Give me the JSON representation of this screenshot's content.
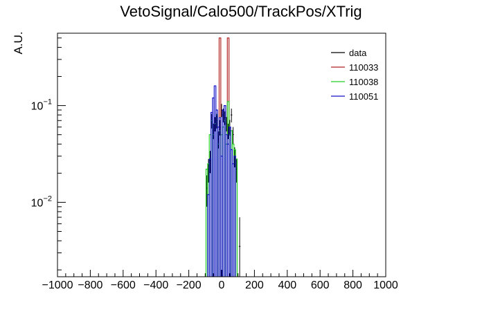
{
  "chart_data": {
    "type": "histogram-step",
    "title": "VetoSignal/Calo500/TrackPos/XTrig",
    "xlabel": "",
    "ylabel": "A.U.",
    "xlim": [
      -1000,
      1000
    ],
    "ylim": [
      0.0017,
      0.56
    ],
    "yscale": "log",
    "grid": false,
    "legend_position": "top-right",
    "x_tick_labels": [
      "−1000",
      "−800",
      "−600",
      "−400",
      "−200",
      "0",
      "200",
      "400",
      "600",
      "800",
      "1000"
    ],
    "x_ticks": [
      -1000,
      -800,
      -600,
      -400,
      -200,
      0,
      200,
      400,
      600,
      800,
      1000
    ],
    "y_tick_labels": [
      {
        "base": "10",
        "exp": "−1",
        "value": 0.1
      },
      {
        "base": "10",
        "exp": "−2",
        "value": 0.01
      }
    ],
    "bin_width": 10,
    "series": [
      {
        "name": "data",
        "color": "#000000",
        "style": "errorbars",
        "points": [
          {
            "x": -90,
            "y": 0.014,
            "err": 0.005
          },
          {
            "x": -80,
            "y": 0.022,
            "err": 0.006
          },
          {
            "x": -70,
            "y": 0.027,
            "err": 0.007
          },
          {
            "x": -60,
            "y": 0.07,
            "err": 0.012
          },
          {
            "x": -50,
            "y": 0.055,
            "err": 0.01
          },
          {
            "x": -40,
            "y": 0.065,
            "err": 0.011
          },
          {
            "x": -30,
            "y": 0.07,
            "err": 0.012
          },
          {
            "x": -20,
            "y": 0.045,
            "err": 0.009
          },
          {
            "x": -10,
            "y": 0.06,
            "err": 0.011
          },
          {
            "x": 0,
            "y": 0.09,
            "err": 0.014
          },
          {
            "x": 10,
            "y": 0.08,
            "err": 0.013
          },
          {
            "x": 20,
            "y": 0.075,
            "err": 0.012
          },
          {
            "x": 30,
            "y": 0.065,
            "err": 0.011
          },
          {
            "x": 40,
            "y": 0.055,
            "err": 0.01
          },
          {
            "x": 50,
            "y": 0.06,
            "err": 0.011
          },
          {
            "x": 60,
            "y": 0.08,
            "err": 0.013
          },
          {
            "x": 70,
            "y": 0.05,
            "err": 0.01
          },
          {
            "x": 80,
            "y": 0.03,
            "err": 0.007
          },
          {
            "x": 90,
            "y": 0.022,
            "err": 0.006
          },
          {
            "x": 110,
            "y": 0.0035,
            "err": 0.0035
          }
        ]
      },
      {
        "name": "110033",
        "color": "#b22222",
        "style": "step",
        "bins": [
          {
            "x": -10,
            "y": 0.5
          },
          {
            "x": 40,
            "y": 0.5
          }
        ]
      },
      {
        "name": "110038",
        "color": "#22cc22",
        "style": "step",
        "bins": [
          {
            "x": -90,
            "y": 0.022
          },
          {
            "x": -80,
            "y": 0.025
          },
          {
            "x": -70,
            "y": 0.05
          },
          {
            "x": -60,
            "y": 0.07
          },
          {
            "x": -50,
            "y": 0.05
          },
          {
            "x": -40,
            "y": 0.065
          },
          {
            "x": -30,
            "y": 0.08
          },
          {
            "x": -20,
            "y": 0.04
          },
          {
            "x": -10,
            "y": 0.055
          },
          {
            "x": 0,
            "y": 0.05
          },
          {
            "x": 10,
            "y": 0.06
          },
          {
            "x": 20,
            "y": 0.07
          },
          {
            "x": 30,
            "y": 0.04
          },
          {
            "x": 40,
            "y": 0.11
          },
          {
            "x": 50,
            "y": 0.05
          },
          {
            "x": 60,
            "y": 0.055
          },
          {
            "x": 70,
            "y": 0.04
          },
          {
            "x": 80,
            "y": 0.035
          },
          {
            "x": 90,
            "y": 0.028
          }
        ]
      },
      {
        "name": "110051",
        "color": "#1010c8",
        "style": "step",
        "bins": [
          {
            "x": -80,
            "y": 0.012
          },
          {
            "x": -70,
            "y": 0.028
          },
          {
            "x": -60,
            "y": 0.085
          },
          {
            "x": -50,
            "y": 0.12
          },
          {
            "x": -40,
            "y": 0.16
          },
          {
            "x": -30,
            "y": 0.09
          },
          {
            "x": -20,
            "y": 0.06
          },
          {
            "x": -10,
            "y": 0.075
          },
          {
            "x": 0,
            "y": 0.03
          },
          {
            "x": 10,
            "y": 0.09
          },
          {
            "x": 20,
            "y": 0.1
          },
          {
            "x": 30,
            "y": 0.05
          },
          {
            "x": 40,
            "y": 0.04
          },
          {
            "x": 50,
            "y": 0.06
          },
          {
            "x": 60,
            "y": 0.035
          },
          {
            "x": 70,
            "y": 0.025
          },
          {
            "x": 80,
            "y": 0.03
          }
        ]
      }
    ]
  }
}
